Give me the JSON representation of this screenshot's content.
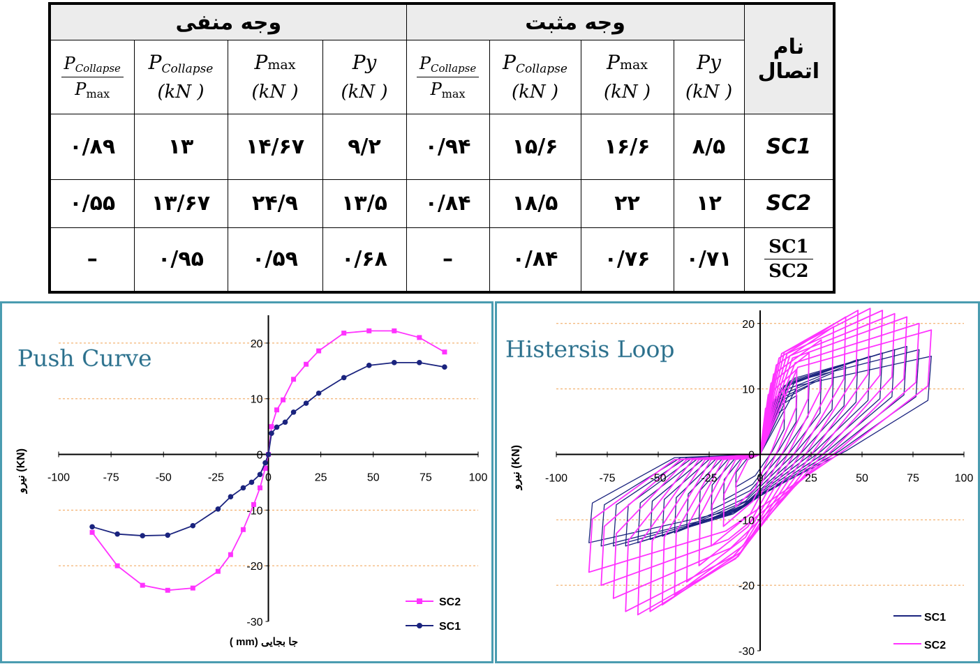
{
  "table": {
    "group_negative": "وجه منفی",
    "group_positive": "وجه مثبت",
    "connection_name_label": "نام اتصال",
    "col_headers": {
      "pcollapse_ratio_num_P": "P",
      "pcollapse_ratio_num_sub": "Collapse",
      "pcollapse_ratio_den_P": "P",
      "pcollapse_ratio_den_sub": "max",
      "pcollapse_P": "P",
      "pcollapse_sub": "Collapse",
      "pcollapse_unit": "(kN )",
      "pmax_P": "P",
      "pmax_sub": "max",
      "pmax_unit": "(kN )",
      "py_label": "Py",
      "py_unit": "(kN )"
    },
    "rows": [
      {
        "name": "SC1",
        "neg": [
          "۰/۸۹",
          "۱۳",
          "۱۴/۶۷",
          "۹/۲"
        ],
        "pos": [
          "۰/۹۴",
          "۱۵/۶",
          "۱۶/۶",
          "۸/۵"
        ]
      },
      {
        "name": "SC2",
        "neg": [
          "۰/۵۵",
          "۱۳/۶۷",
          "۲۴/۹",
          "۱۳/۵"
        ],
        "pos": [
          "۰/۸۴",
          "۱۸/۵",
          "۲۲",
          "۱۲"
        ]
      },
      {
        "name_num": "SC1",
        "name_den": "SC2",
        "neg": [
          "–",
          "۰/۹۵",
          "۰/۵۹",
          "۰/۶۸"
        ],
        "pos": [
          "–",
          "۰/۸۴",
          "۰/۷۶",
          "۰/۷۱"
        ]
      }
    ]
  },
  "chart_data": [
    {
      "type": "line",
      "title": "Push Curve",
      "xlabel": "جا بجایی (mm )",
      "ylabel": "نیرو (KN)",
      "xlim": [
        -100,
        100
      ],
      "ylim": [
        -30,
        25
      ],
      "xticks": [
        -100,
        -75,
        -50,
        -25,
        0,
        25,
        50,
        75,
        100
      ],
      "yticks": [
        -30,
        -20,
        -10,
        0,
        10,
        20
      ],
      "grid": "dashed orange at ±10, ±20",
      "legend_position": "bottom-right",
      "series": [
        {
          "name": "SC2",
          "color": "#ff33ff",
          "marker": "square",
          "x": [
            -84,
            -72,
            -60,
            -48,
            -36,
            -24,
            -18,
            -12,
            -7,
            -4,
            -1.5,
            0,
            1.5,
            4,
            7,
            12,
            18,
            24,
            36,
            48,
            60,
            72,
            84
          ],
          "y": [
            -14,
            -20,
            -23.5,
            -24.4,
            -24,
            -21,
            -18,
            -13.5,
            -9,
            -6,
            -2.5,
            0,
            5,
            8,
            9.8,
            13.5,
            16.2,
            18.6,
            21.8,
            22.2,
            22.2,
            21,
            18.4
          ]
        },
        {
          "name": "SC1",
          "color": "#1a237e",
          "marker": "circle",
          "x": [
            -84,
            -72,
            -60,
            -48,
            -36,
            -24,
            -18,
            -12,
            -8,
            -4,
            -1.5,
            0,
            1.5,
            4,
            8,
            12,
            18,
            24,
            36,
            48,
            60,
            72,
            84
          ],
          "y": [
            -13,
            -14.3,
            -14.6,
            -14.5,
            -12.8,
            -9.8,
            -7.6,
            -6,
            -5,
            -3.6,
            -1.5,
            0,
            3.8,
            4.9,
            5.8,
            7.6,
            9.2,
            11,
            13.8,
            16,
            16.5,
            16.5,
            15.7
          ]
        }
      ]
    },
    {
      "type": "line",
      "title": "Histersis Loop",
      "ylabel": "نیرو (KN)",
      "xlim": [
        -100,
        100
      ],
      "ylim": [
        -30,
        22
      ],
      "xticks": [
        -100,
        -75,
        -50,
        -25,
        0,
        25,
        50,
        75,
        100
      ],
      "yticks": [
        -30,
        -20,
        -10,
        0,
        10,
        20
      ],
      "grid": "dashed orange at ±10, ±20",
      "legend_position": "bottom-right",
      "series": [
        {
          "name": "SC1",
          "color": "#1a237e",
          "cycle_amplitudes_mm": [
            12,
            18,
            24,
            30,
            36,
            42,
            48,
            54,
            60,
            66,
            72,
            78,
            84
          ],
          "peak_force_pos_kN": [
            7,
            9,
            10.5,
            11.5,
            12.5,
            13.5,
            14.5,
            15,
            15.5,
            16,
            16.5,
            16,
            15
          ],
          "peak_force_neg_kN": [
            -5,
            -7,
            -8.5,
            -10,
            -11,
            -12,
            -12.5,
            -13,
            -13.5,
            -14,
            -14,
            -14,
            -13.5
          ]
        },
        {
          "name": "SC2",
          "color": "#ff33ff",
          "cycle_amplitudes_mm": [
            12,
            18,
            24,
            30,
            36,
            42,
            48,
            54,
            60,
            66,
            72,
            78,
            84
          ],
          "peak_force_pos_kN": [
            10,
            13,
            15.5,
            17.5,
            19.5,
            21,
            22,
            22.3,
            22,
            21.5,
            21,
            20,
            19
          ],
          "peak_force_neg_kN": [
            -8,
            -11,
            -14,
            -17,
            -19.5,
            -21.5,
            -23,
            -24,
            -24.5,
            -24,
            -22,
            -20,
            -18
          ]
        }
      ]
    }
  ]
}
